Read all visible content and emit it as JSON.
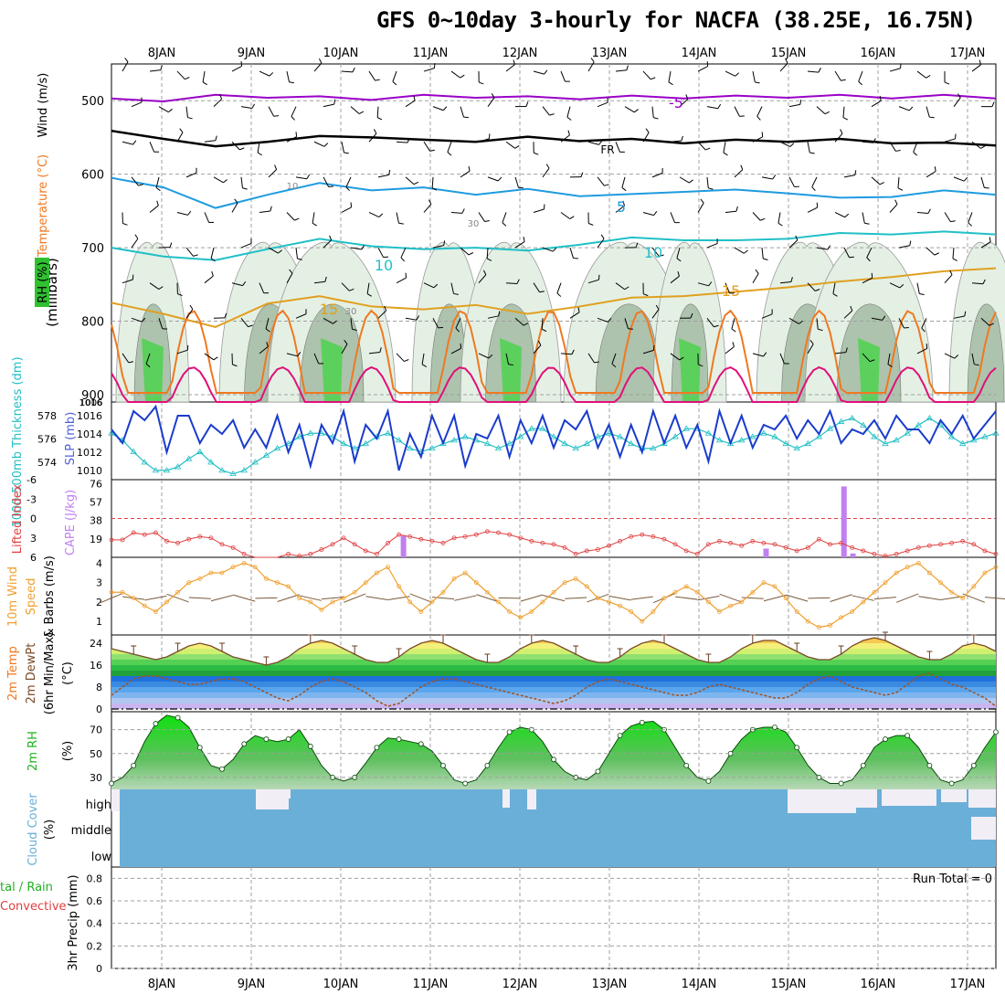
{
  "title": "GFS 0~10day 3-hourly for NACFA (38.25E, 16.75N)",
  "colors": {
    "wind_t_purple": "#9a00c8",
    "t_blue": "#1e9be0",
    "t_cyan": "#20c0c8",
    "t_orange_light": "#e0a020",
    "t_orange": "#f07820",
    "t_magenta": "#e0107a",
    "slp_blue": "#1a3ccc",
    "thick_cyan": "#23bfc4",
    "cape_purple": "#c080f0",
    "li_red": "#e04040",
    "wind_orange": "#f0a030",
    "barb_brown": "#7a5a3a",
    "rh_green": "#22d030",
    "cloud_blue": "#6aafd8",
    "grid_gray": "#a0a0a0"
  },
  "chart_data": [
    {
      "panel": "upper-air",
      "type": "line",
      "x_ticks": [
        "8JAN",
        "9JAN",
        "10JAN",
        "11JAN",
        "12JAN",
        "13JAN",
        "14JAN",
        "15JAN",
        "16JAN",
        "17JAN"
      ],
      "y_label_parts": [
        "RH (%)",
        "Temperature (°C)",
        "Wind (m/s)"
      ],
      "y_axis_label": "(millibars)",
      "y_ticks": [
        "500",
        "600",
        "700",
        "800",
        "900"
      ],
      "ylim": [
        450,
        910
      ],
      "contour_labels": [
        "-5",
        "FR",
        "5",
        "10",
        "10",
        "15",
        "15",
        "10",
        "30",
        "30"
      ],
      "series": [
        {
          "name": "-5",
          "color": "#9a00c8",
          "p": [
            497,
            501,
            492,
            496,
            494,
            499,
            492,
            496,
            494,
            498,
            493,
            497,
            493,
            496,
            492,
            497,
            492,
            497
          ]
        },
        {
          "name": "FR",
          "color": "#000000",
          "p": [
            541,
            552,
            562,
            556,
            548,
            550,
            553,
            556,
            549,
            555,
            552,
            558,
            553,
            556,
            552,
            558,
            557,
            561
          ]
        },
        {
          "name": "5",
          "color": "#1e9be0",
          "p": [
            605,
            618,
            646,
            628,
            612,
            622,
            618,
            628,
            620,
            630,
            627,
            624,
            621,
            626,
            632,
            631,
            622,
            628
          ]
        },
        {
          "name": "10",
          "color": "#20c0c8",
          "p": [
            700,
            712,
            717,
            702,
            688,
            698,
            702,
            700,
            704,
            696,
            686,
            690,
            690,
            688,
            680,
            682,
            678,
            682
          ]
        },
        {
          "name": "15",
          "color": "#e0a020",
          "p": [
            775,
            790,
            808,
            776,
            766,
            780,
            784,
            778,
            790,
            780,
            768,
            766,
            760,
            754,
            746,
            740,
            732,
            728
          ]
        }
      ]
    },
    {
      "panel": "slp-thickness",
      "type": "line",
      "y_left_label": "1000-500mb Thickness (dm)",
      "y_left_ticks": [
        "578",
        "576",
        "574"
      ],
      "y_right_label": "SLP (mb)",
      "y_right_ticks": [
        "1016",
        "1014",
        "1012",
        "1010"
      ],
      "top_ticks": [
        "1006",
        "1016"
      ],
      "series": [
        {
          "name": "SLP (mb)",
          "color": "#1a3ccc",
          "unit": "mb",
          "values": [
            1014.5,
            1013.0,
            1016.5,
            1015.5,
            1017.0,
            1012.0,
            1016.0,
            1016.0,
            1013.0,
            1015.0,
            1014.0,
            1015.5,
            1012.5,
            1014.5,
            1012.5,
            1016.0,
            1012.0,
            1015.0,
            1010.5,
            1015.0,
            1013.0,
            1016.5,
            1011.0,
            1015.0,
            1013.5,
            1016.5,
            1010.0,
            1014.0,
            1011.5,
            1016.0,
            1013.0,
            1016.0,
            1010.5,
            1014.0,
            1013.5,
            1016.0,
            1011.5,
            1015.5,
            1013.0,
            1016.0,
            1012.5,
            1015.5,
            1014.5,
            1016.5,
            1012.5,
            1015.0,
            1011.5,
            1015.0,
            1012.0,
            1016.5,
            1013.0,
            1016.0,
            1012.5,
            1015.0,
            1011.0,
            1016.5,
            1013.0,
            1016.0,
            1012.5,
            1015.0,
            1014.5,
            1016.0,
            1013.5,
            1015.5,
            1014.0,
            1016.5,
            1013.0,
            1014.5,
            1014.0,
            1015.5,
            1013.5,
            1016.0,
            1014.5,
            1014.5,
            1013.0,
            1015.5,
            1014.0,
            1016.0,
            1013.5,
            1015.0,
            1016.5
          ]
        },
        {
          "name": "Thickness (dm)",
          "color": "#23bfc4",
          "unit": "dm",
          "values": [
            576.5,
            575.9,
            574.9,
            574.0,
            573.3,
            573.3,
            573.6,
            574.3,
            574.9,
            574.0,
            573.3,
            573.0,
            573.3,
            574.0,
            574.6,
            575.2,
            575.6,
            576.2,
            576.5,
            576.5,
            576.2,
            575.6,
            575.2,
            575.6,
            576.2,
            576.5,
            575.9,
            575.2,
            574.9,
            575.2,
            575.6,
            575.9,
            576.2,
            575.9,
            575.6,
            575.2,
            575.6,
            576.2,
            576.9,
            576.9,
            576.2,
            575.6,
            575.2,
            575.6,
            576.2,
            576.5,
            576.2,
            575.6,
            575.2,
            575.2,
            575.6,
            576.2,
            576.9,
            576.9,
            576.5,
            575.9,
            575.6,
            575.9,
            576.2,
            576.5,
            576.2,
            575.6,
            575.2,
            575.6,
            576.2,
            576.9,
            577.5,
            577.8,
            577.2,
            576.2,
            575.6,
            575.9,
            576.5,
            577.2,
            577.8,
            577.2,
            576.2,
            575.6,
            575.9,
            576.2,
            576.5
          ]
        }
      ]
    },
    {
      "panel": "cape-li",
      "type": "bar",
      "y_left_label": "Lifted Index",
      "y_left_ticks": [
        "-6",
        "-3",
        "0",
        "3",
        "6"
      ],
      "y_right_label": "CAPE (J/kg)",
      "y_right_ticks": [
        "76",
        "57",
        "38",
        "19"
      ],
      "li_series": {
        "name": "Lifted Index",
        "color": "#e04040",
        "values": [
          3.3,
          3.3,
          2.2,
          2.5,
          2.2,
          3.5,
          3.8,
          3.2,
          2.8,
          3.0,
          4.0,
          4.5,
          5.5,
          6.5,
          6.5,
          6.0,
          5.5,
          5.8,
          5.5,
          4.8,
          4.0,
          3.0,
          4.0,
          5.0,
          5.5,
          3.8,
          2.5,
          2.8,
          3.2,
          3.5,
          3.8,
          3.0,
          2.8,
          2.5,
          2.0,
          2.2,
          2.5,
          3.0,
          3.5,
          3.8,
          4.0,
          4.5,
          5.5,
          5.0,
          4.8,
          4.2,
          3.5,
          2.8,
          2.5,
          2.8,
          3.2,
          4.0,
          5.0,
          5.5,
          4.0,
          3.5,
          3.8,
          4.2,
          3.5,
          3.8,
          4.0,
          4.5,
          5.0,
          4.5,
          3.2,
          4.0,
          3.8,
          4.5,
          5.0,
          5.5,
          5.8,
          5.5,
          5.0,
          4.5,
          4.2,
          4.0,
          3.8,
          3.5,
          4.0,
          5.0,
          5.5
        ]
      },
      "cape_bars": [
        {
          "time_days": 2.7,
          "cape": 22
        },
        {
          "time_days": 6.75,
          "cape": 9
        },
        {
          "time_days": 7.62,
          "cape": 73
        },
        {
          "time_days": 7.72,
          "cape": 4
        }
      ]
    },
    {
      "panel": "wind10m",
      "type": "line",
      "y_label": "10m Wind Speed & Barbs (m/s)",
      "y_ticks": [
        "4",
        "3",
        "2",
        "1"
      ],
      "series": [
        {
          "name": "Speed",
          "color": "#f0a030",
          "values": [
            2.5,
            2.5,
            2.2,
            1.8,
            1.5,
            2.0,
            2.5,
            3.0,
            3.2,
            3.5,
            3.5,
            3.8,
            4.0,
            3.8,
            3.2,
            3.0,
            2.8,
            2.2,
            2.0,
            1.6,
            2.0,
            2.2,
            2.5,
            3.0,
            3.5,
            3.8,
            2.8,
            2.0,
            1.5,
            2.0,
            2.5,
            3.2,
            3.5,
            3.0,
            2.5,
            2.0,
            1.5,
            1.2,
            1.5,
            2.0,
            2.5,
            3.0,
            3.2,
            2.8,
            2.2,
            2.0,
            1.8,
            1.5,
            1.0,
            1.5,
            2.2,
            2.5,
            2.8,
            2.5,
            2.0,
            1.5,
            1.8,
            2.0,
            2.5,
            3.0,
            2.8,
            2.2,
            1.5,
            1.0,
            0.7,
            0.8,
            1.2,
            1.5,
            2.0,
            2.5,
            3.0,
            3.5,
            3.8,
            4.0,
            3.5,
            3.0,
            2.5,
            2.2,
            2.8,
            3.5,
            3.8
          ]
        }
      ]
    },
    {
      "panel": "temp2m",
      "type": "area",
      "y_label": "2m Temp 2m DewPt (6hr Min/Max) (°C)",
      "y_ticks": [
        "24",
        "16",
        "8",
        "0"
      ],
      "series": [
        {
          "name": "2m Temp",
          "color": "#7a4a28",
          "values": [
            22,
            21,
            20,
            19,
            18,
            19,
            21,
            23,
            24,
            23,
            21,
            19,
            18,
            17,
            16,
            17,
            19,
            22,
            24,
            25,
            24,
            22,
            20,
            18,
            17,
            17,
            19,
            22,
            24,
            25,
            24,
            22,
            20,
            18,
            17,
            17,
            19,
            22,
            24,
            25,
            24,
            22,
            20,
            18,
            17,
            17,
            19,
            22,
            24,
            25,
            24,
            22,
            20,
            18,
            17,
            17,
            19,
            22,
            24,
            25,
            25,
            23,
            21,
            19,
            18,
            18,
            20,
            23,
            25,
            26,
            25,
            23,
            21,
            19,
            18,
            18,
            20,
            23,
            24,
            23,
            21
          ]
        },
        {
          "name": "2m DewPt",
          "color": "#a05020",
          "values": [
            5,
            8,
            11,
            12,
            12,
            11,
            10,
            9,
            9,
            10,
            11,
            11,
            10,
            8,
            6,
            4,
            3,
            5,
            8,
            10,
            11,
            10,
            8,
            6,
            3,
            1,
            2,
            5,
            8,
            10,
            11,
            11,
            10,
            9,
            8,
            7,
            6,
            5,
            4,
            3,
            2,
            3,
            5,
            8,
            10,
            11,
            10,
            9,
            8,
            7,
            6,
            5,
            5,
            6,
            8,
            9,
            8,
            7,
            6,
            5,
            4,
            4,
            6,
            9,
            11,
            12,
            10,
            8,
            7,
            6,
            5,
            6,
            9,
            12,
            13,
            11,
            9,
            8,
            6,
            4,
            1
          ]
        }
      ]
    },
    {
      "panel": "rh2m",
      "type": "area",
      "y_label": "2m RH (%)",
      "y_ticks": [
        "70",
        "50",
        "30"
      ],
      "series": [
        {
          "name": "2m RH",
          "color": "#22d030",
          "values": [
            25,
            30,
            40,
            60,
            75,
            82,
            80,
            72,
            55,
            40,
            37,
            45,
            58,
            65,
            62,
            60,
            62,
            70,
            56,
            40,
            30,
            27,
            30,
            42,
            55,
            63,
            62,
            60,
            58,
            52,
            40,
            28,
            25,
            28,
            40,
            55,
            68,
            72,
            70,
            60,
            45,
            35,
            30,
            28,
            35,
            50,
            65,
            73,
            76,
            77,
            70,
            55,
            40,
            30,
            27,
            35,
            50,
            62,
            70,
            72,
            72,
            68,
            55,
            40,
            30,
            25,
            25,
            28,
            40,
            55,
            62,
            65,
            65,
            55,
            40,
            28,
            25,
            28,
            40,
            55,
            68
          ]
        }
      ]
    },
    {
      "panel": "cloud",
      "type": "area",
      "y_label": "Cloud Cover (%)",
      "levels": [
        "high",
        "middle",
        "low"
      ]
    },
    {
      "panel": "precip",
      "type": "bar",
      "y_label": "3hr Precip (mm)",
      "legend_left_parts": [
        "tal / Rain",
        "Convective"
      ],
      "y_ticks": [
        "0.8",
        "0.6",
        "0.4",
        "0.2",
        "0"
      ],
      "ylim": [
        0,
        0.9
      ],
      "values": [],
      "run_total_label": "Run Total = 0"
    }
  ]
}
